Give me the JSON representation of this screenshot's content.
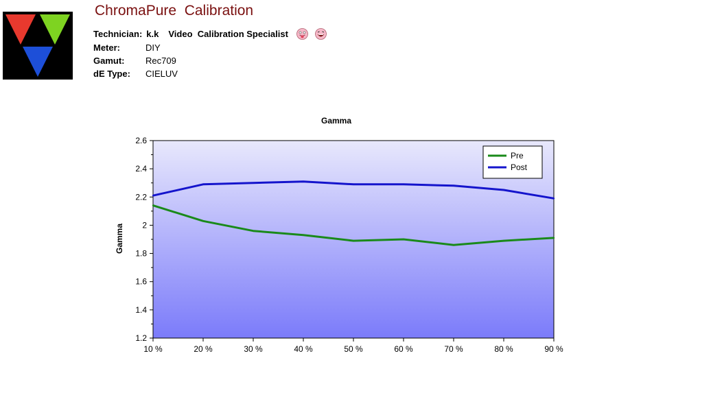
{
  "header": {
    "app_title": "ChromaPure  Calibration",
    "technician_label": "Technician:",
    "technician_value": "k.k",
    "technician_role": "Video  Calibration Specialist",
    "meter_label": "Meter:",
    "meter_value": "DIY",
    "gamut_label": "Gamut:",
    "gamut_value": "Rec709",
    "de_type_label": "dE Type:",
    "de_type_value": "CIELUV",
    "logo_colors": {
      "red": "#e8392e",
      "green": "#7ed321",
      "blue": "#1d4fd8",
      "background": "#000000"
    }
  },
  "chart_data": {
    "type": "line",
    "title": "Gamma",
    "xlabel": "",
    "ylabel": "Gamma",
    "categories": [
      "10 %",
      "20 %",
      "30 %",
      "40 %",
      "50 %",
      "60 %",
      "70 %",
      "80 %",
      "90 %"
    ],
    "ylim": [
      1.2,
      2.6
    ],
    "yticks": [
      "1.2",
      "1.4",
      "1.6",
      "1.8",
      "2",
      "2.2",
      "2.4",
      "2.6"
    ],
    "grid": false,
    "legend": "top-right",
    "background_gradient": [
      "#e8e8fc",
      "#7b7bfa"
    ],
    "series": [
      {
        "name": "Pre",
        "color": "#1a8a1a",
        "values": [
          2.14,
          2.03,
          1.96,
          1.93,
          1.89,
          1.9,
          1.86,
          1.89,
          1.91
        ]
      },
      {
        "name": "Post",
        "color": "#1414cc",
        "values": [
          2.21,
          2.29,
          2.3,
          2.31,
          2.29,
          2.29,
          2.28,
          2.25,
          2.19
        ]
      }
    ]
  }
}
